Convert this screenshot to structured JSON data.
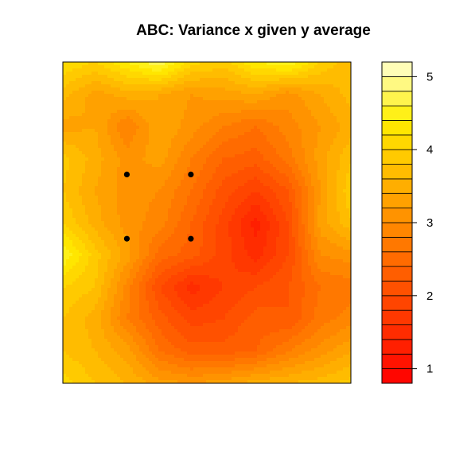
{
  "chart_data": {
    "type": "heatmap",
    "title": "ABC: Variance x given y average",
    "xlabel": "",
    "ylabel": "",
    "grid": false,
    "colorbar": {
      "range": [
        0.8,
        5.2
      ],
      "ticks": [
        1,
        2,
        3,
        4,
        5
      ],
      "tick_labels": [
        "1",
        "2",
        "3",
        "4",
        "5"
      ],
      "n_levels": 22,
      "palette": "heat"
    },
    "grid_values": [
      [
        4.2,
        4.0,
        4.4,
        4.8,
        4.1,
        3.9,
        4.4,
        4.6,
        4.0,
        3.6
      ],
      [
        3.7,
        3.3,
        3.5,
        3.4,
        3.2,
        3.3,
        3.4,
        3.1,
        3.4,
        3.7
      ],
      [
        3.3,
        3.4,
        2.8,
        3.4,
        3.1,
        2.8,
        2.6,
        2.9,
        3.2,
        3.5
      ],
      [
        3.9,
        3.5,
        3.1,
        3.3,
        2.8,
        2.4,
        2.3,
        2.7,
        3.3,
        3.8
      ],
      [
        3.8,
        3.4,
        3.1,
        3.0,
        2.6,
        2.1,
        1.8,
        2.2,
        3.2,
        4.0
      ],
      [
        4.0,
        3.5,
        3.1,
        2.9,
        2.4,
        1.9,
        1.3,
        2.0,
        3.3,
        3.8
      ],
      [
        4.6,
        3.9,
        3.3,
        2.5,
        2.3,
        1.9,
        1.5,
        2.0,
        3.0,
        3.1
      ],
      [
        4.0,
        3.8,
        2.9,
        2.0,
        1.5,
        1.8,
        2.0,
        2.2,
        2.6,
        2.7
      ],
      [
        3.8,
        3.5,
        2.8,
        2.3,
        1.9,
        2.0,
        2.3,
        2.2,
        2.7,
        2.9
      ],
      [
        3.8,
        3.6,
        3.3,
        2.6,
        2.3,
        2.3,
        2.4,
        2.8,
        3.1,
        3.4
      ],
      [
        4.1,
        3.8,
        3.6,
        3.3,
        3.2,
        3.3,
        3.5,
        3.6,
        3.7,
        3.9
      ]
    ],
    "points": [
      {
        "col": 2,
        "row": 3.5
      },
      {
        "col": 4,
        "row": 3.5
      },
      {
        "col": 2,
        "row": 5.5
      },
      {
        "col": 4,
        "row": 5.5
      }
    ]
  }
}
